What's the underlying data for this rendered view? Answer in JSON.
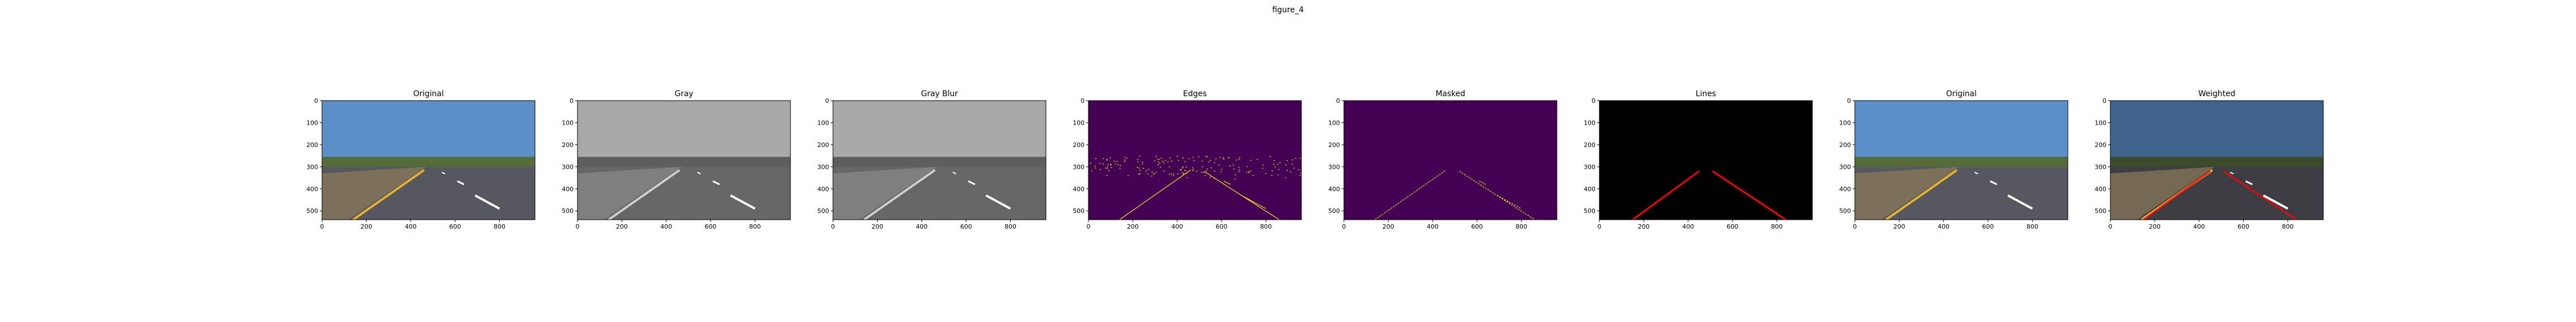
{
  "window": {
    "title": "figure_4"
  },
  "x_ticks": [
    "0",
    "200",
    "400",
    "600",
    "800"
  ],
  "y_ticks": [
    "0",
    "100",
    "200",
    "300",
    "400",
    "500"
  ],
  "panels": [
    {
      "title": "Original",
      "kind": "original"
    },
    {
      "title": "Gray",
      "kind": "gray"
    },
    {
      "title": "Gray Blur",
      "kind": "grayblur"
    },
    {
      "title": "Edges",
      "kind": "edges"
    },
    {
      "title": "Masked",
      "kind": "masked"
    },
    {
      "title": "Lines",
      "kind": "lines"
    },
    {
      "title": "Original",
      "kind": "original"
    },
    {
      "title": "Weighted",
      "kind": "weighted"
    }
  ],
  "colors": {
    "sky": "#5b8fc7",
    "road": "#57575f",
    "trees": "#556b3a",
    "lane_yellow": "#e8b22c",
    "lane_white": "#ffffff",
    "edges_bg": "#440154",
    "edges_fg": "#fde725",
    "lines_bg": "#000000",
    "lines_red": "#ff0000"
  }
}
